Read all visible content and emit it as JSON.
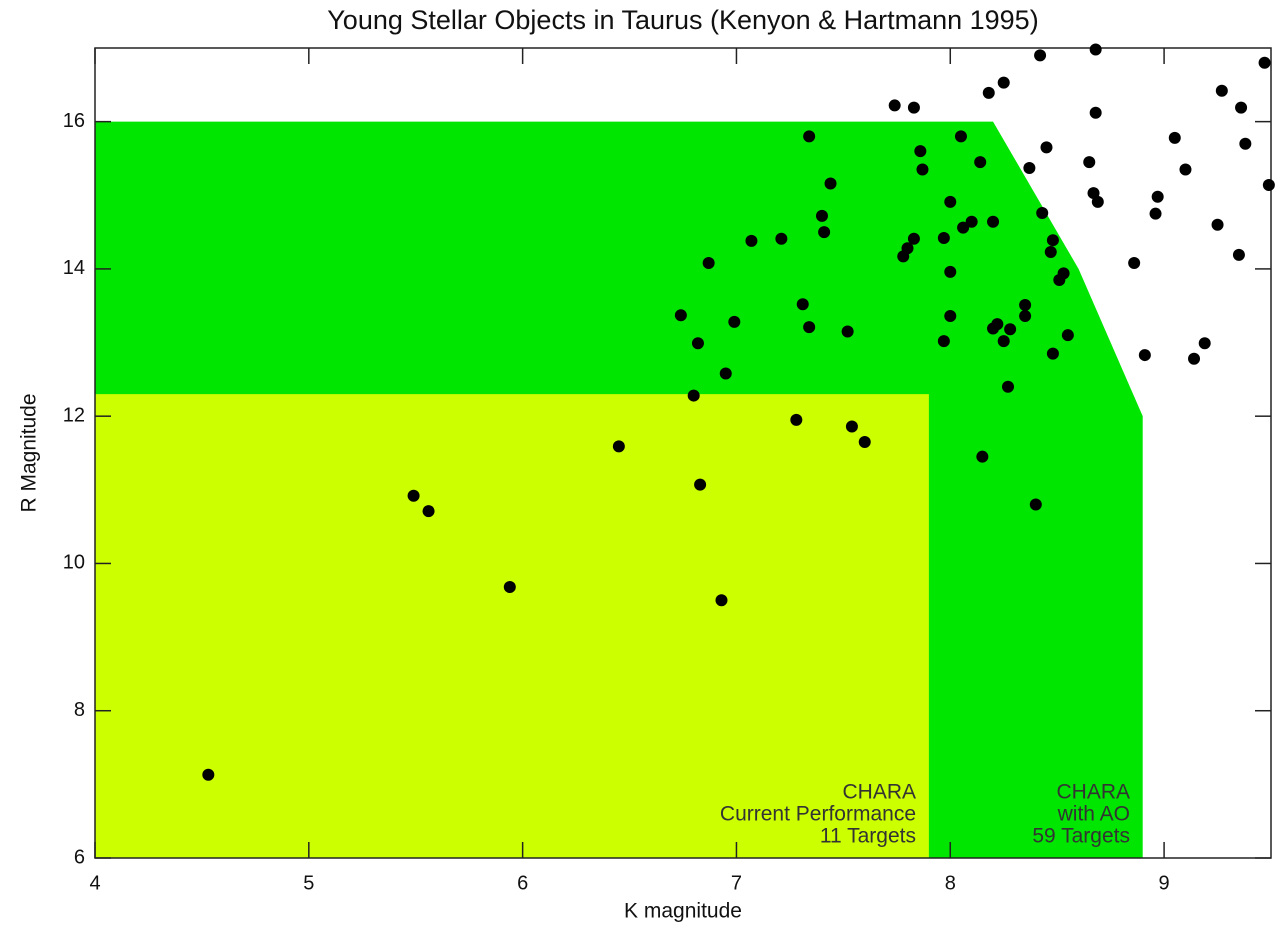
{
  "chart_data": {
    "type": "scatter",
    "title": "Young Stellar Objects in Taurus (Kenyon & Hartmann 1995)",
    "x_label": "K magnitude",
    "y_label": "R Magnitude",
    "xlim": [
      4,
      9.5
    ],
    "ylim": [
      6,
      17
    ],
    "xticks": [
      4,
      5,
      6,
      7,
      8,
      9
    ],
    "yticks": [
      6,
      8,
      10,
      12,
      14,
      16
    ],
    "color": "#000000",
    "regions": [
      {
        "color": "#00e600",
        "x": [
          4,
          4,
          8.2,
          8.6,
          8.9,
          8.9
        ],
        "y": [
          6,
          16,
          16,
          14,
          12,
          6
        ]
      },
      {
        "color": "#ccff00",
        "x": [
          4,
          4,
          7.9,
          7.9
        ],
        "y": [
          6,
          12.3,
          12.3,
          6
        ]
      }
    ],
    "annotations": [
      [
        "CHARA",
        "Current Performance",
        "11 Targets"
      ],
      [
        "CHARA",
        "with AO",
        "59 Targets"
      ]
    ],
    "x": [
      4.53,
      5.49,
      5.56,
      5.94,
      6.45,
      6.74,
      6.82,
      6.8,
      6.83,
      6.87,
      6.93,
      6.95,
      6.99,
      7.07,
      7.21,
      7.28,
      7.31,
      7.34,
      7.34,
      7.4,
      7.41,
      7.44,
      7.52,
      7.54,
      7.6,
      7.74,
      7.78,
      7.8,
      7.83,
      7.83,
      7.86,
      7.87,
      7.97,
      7.97,
      8.0,
      8.0,
      8.0,
      8.05,
      8.06,
      8.1,
      8.14,
      8.15,
      8.18,
      8.2,
      8.2,
      8.22,
      8.25,
      8.25,
      8.27,
      8.28,
      8.35,
      8.35,
      8.37,
      8.4,
      8.42,
      8.43,
      8.45,
      8.47,
      8.48,
      8.48,
      8.51,
      8.53,
      8.55,
      8.65,
      8.67,
      8.68,
      8.68,
      8.69,
      8.86,
      8.91,
      8.97,
      8.96,
      9.05,
      9.1,
      9.14,
      9.19,
      9.25,
      9.27,
      9.35,
      9.36,
      9.38,
      9.47,
      9.49
    ],
    "values": [
      7.13,
      10.92,
      10.71,
      9.68,
      11.59,
      13.37,
      12.99,
      12.28,
      11.07,
      14.08,
      9.5,
      12.58,
      13.28,
      14.38,
      14.41,
      11.95,
      13.52,
      15.8,
      13.21,
      14.72,
      14.5,
      15.16,
      13.15,
      11.86,
      11.65,
      16.22,
      14.17,
      14.28,
      16.19,
      14.41,
      15.6,
      15.35,
      14.42,
      13.02,
      14.91,
      13.96,
      13.36,
      15.8,
      14.56,
      14.64,
      15.45,
      11.45,
      16.39,
      14.64,
      13.19,
      13.25,
      16.53,
      13.02,
      12.4,
      13.18,
      13.51,
      13.36,
      15.37,
      10.8,
      16.9,
      14.76,
      15.65,
      14.23,
      14.39,
      12.85,
      13.85,
      13.94,
      13.1,
      15.45,
      15.03,
      16.98,
      16.12,
      14.91,
      14.08,
      12.83,
      14.98,
      14.75,
      15.78,
      15.35,
      12.78,
      12.99,
      14.6,
      16.42,
      14.19,
      16.19,
      15.7,
      16.8,
      15.14
    ]
  }
}
